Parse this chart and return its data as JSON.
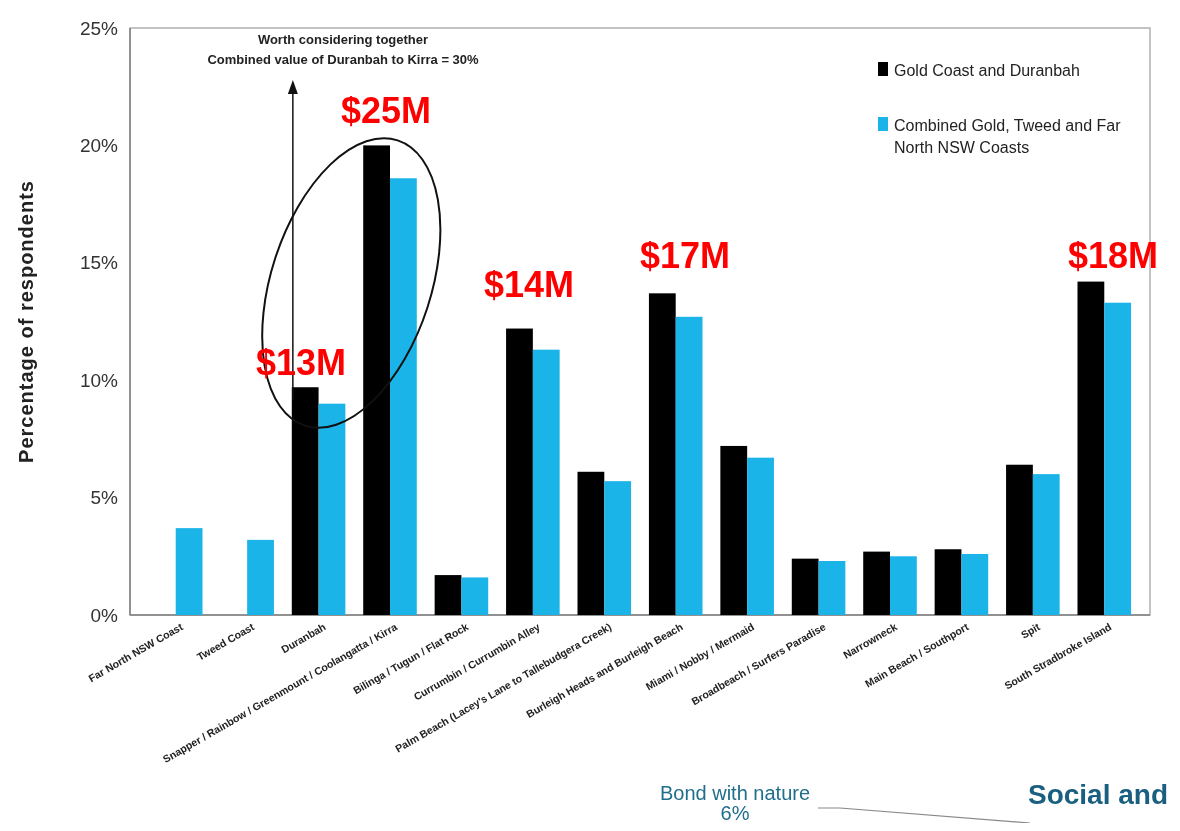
{
  "chart_data": {
    "type": "bar",
    "ylabel": "Percentage of respondents",
    "categories": [
      "Far North NSW Coast",
      "Tweed Coast",
      "Duranbah",
      "Snapper / Rainbow / Greenmount / Coolangatta / Kirra",
      "Bilinga / Tugun / Flat Rock",
      "Currumbin / Currumbin Alley",
      "Palm Beach (Lacey's Lane to Tallebudgera Creek)",
      "Burleigh Heads and Burleigh Beach",
      "Miami / Nobby / Mermaid",
      "Broadbeach / Surfers Paradise",
      "Narrowneck",
      "Main Beach / Southport",
      "Spit",
      "South Stradbroke Island"
    ],
    "series": [
      {
        "name": "Gold Coast and Duranbah",
        "color": "#000000",
        "values": [
          null,
          null,
          9.7,
          20.0,
          1.7,
          12.2,
          6.1,
          13.7,
          7.2,
          2.4,
          2.7,
          2.8,
          6.4,
          14.2
        ]
      },
      {
        "name": "Combined Gold, Tweed and Far North NSW Coasts",
        "color": "#1ab4e8",
        "values": [
          3.7,
          3.2,
          9.0,
          18.6,
          1.6,
          11.3,
          5.7,
          12.7,
          6.7,
          2.3,
          2.5,
          2.6,
          6.0,
          13.3
        ]
      }
    ],
    "ylim": [
      0,
      25
    ],
    "yticks": [
      {
        "value": 0,
        "label": "0%"
      },
      {
        "value": 5,
        "label": "5%"
      },
      {
        "value": 10,
        "label": "10%"
      },
      {
        "value": 15,
        "label": "15%"
      },
      {
        "value": 20,
        "label": "20%"
      },
      {
        "value": 25,
        "label": "25%"
      }
    ],
    "grid": false,
    "legend": "top right",
    "annotations": [
      "Worth considering together\nCombined value of Duranbah to Kirra = 30%",
      "$13M",
      "$25M",
      "$14M",
      "$17M",
      "$18M",
      "Bond with nature\n6%",
      "Social and"
    ]
  }
}
